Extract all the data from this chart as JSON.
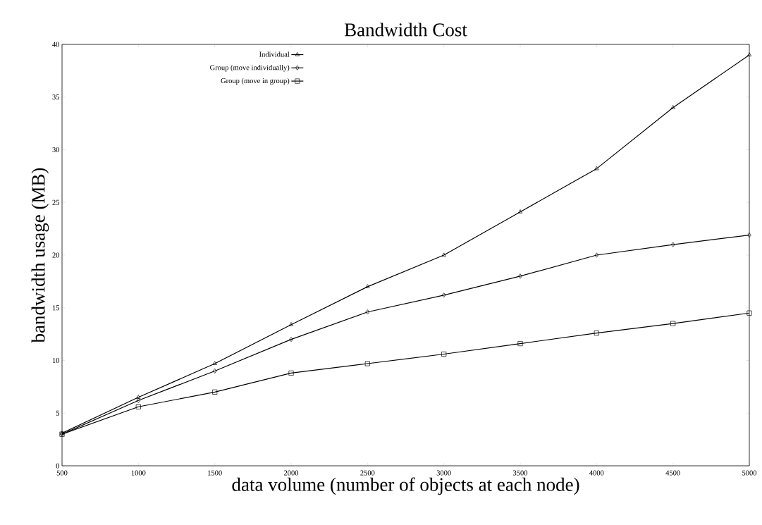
{
  "chart_data": {
    "type": "line",
    "title": "Bandwidth Cost",
    "xlabel": "data volume (number of objects at each node)",
    "ylabel": "bandwidth usage (MB)",
    "x": [
      500,
      1000,
      1500,
      2000,
      2500,
      3000,
      3500,
      4000,
      4500,
      5000
    ],
    "series": [
      {
        "name": "Individual",
        "color": "#000000",
        "marker": "triangle",
        "values": [
          3.1,
          6.5,
          9.7,
          13.4,
          17.0,
          20.0,
          24.1,
          28.2,
          34.0,
          39.0
        ]
      },
      {
        "name": "Group (move individually)",
        "color": "#000000",
        "marker": "diamond",
        "values": [
          3.0,
          6.2,
          9.0,
          12.0,
          14.6,
          16.2,
          18.0,
          20.0,
          21.0,
          21.9
        ]
      },
      {
        "name": "Group (move in group)",
        "color": "#000000",
        "marker": "square",
        "values": [
          3.0,
          5.6,
          7.0,
          8.8,
          9.7,
          10.6,
          11.6,
          12.6,
          13.5,
          14.5
        ]
      }
    ],
    "xlim": [
      500,
      5000
    ],
    "ylim": [
      0,
      40
    ],
    "xticks": [
      500,
      1000,
      1500,
      2000,
      2500,
      3000,
      3500,
      4000,
      4500,
      5000
    ],
    "yticks": [
      0,
      5,
      10,
      15,
      20,
      25,
      30,
      35,
      40
    ],
    "legend": "top left",
    "grid": false,
    "line_style": "solid"
  }
}
